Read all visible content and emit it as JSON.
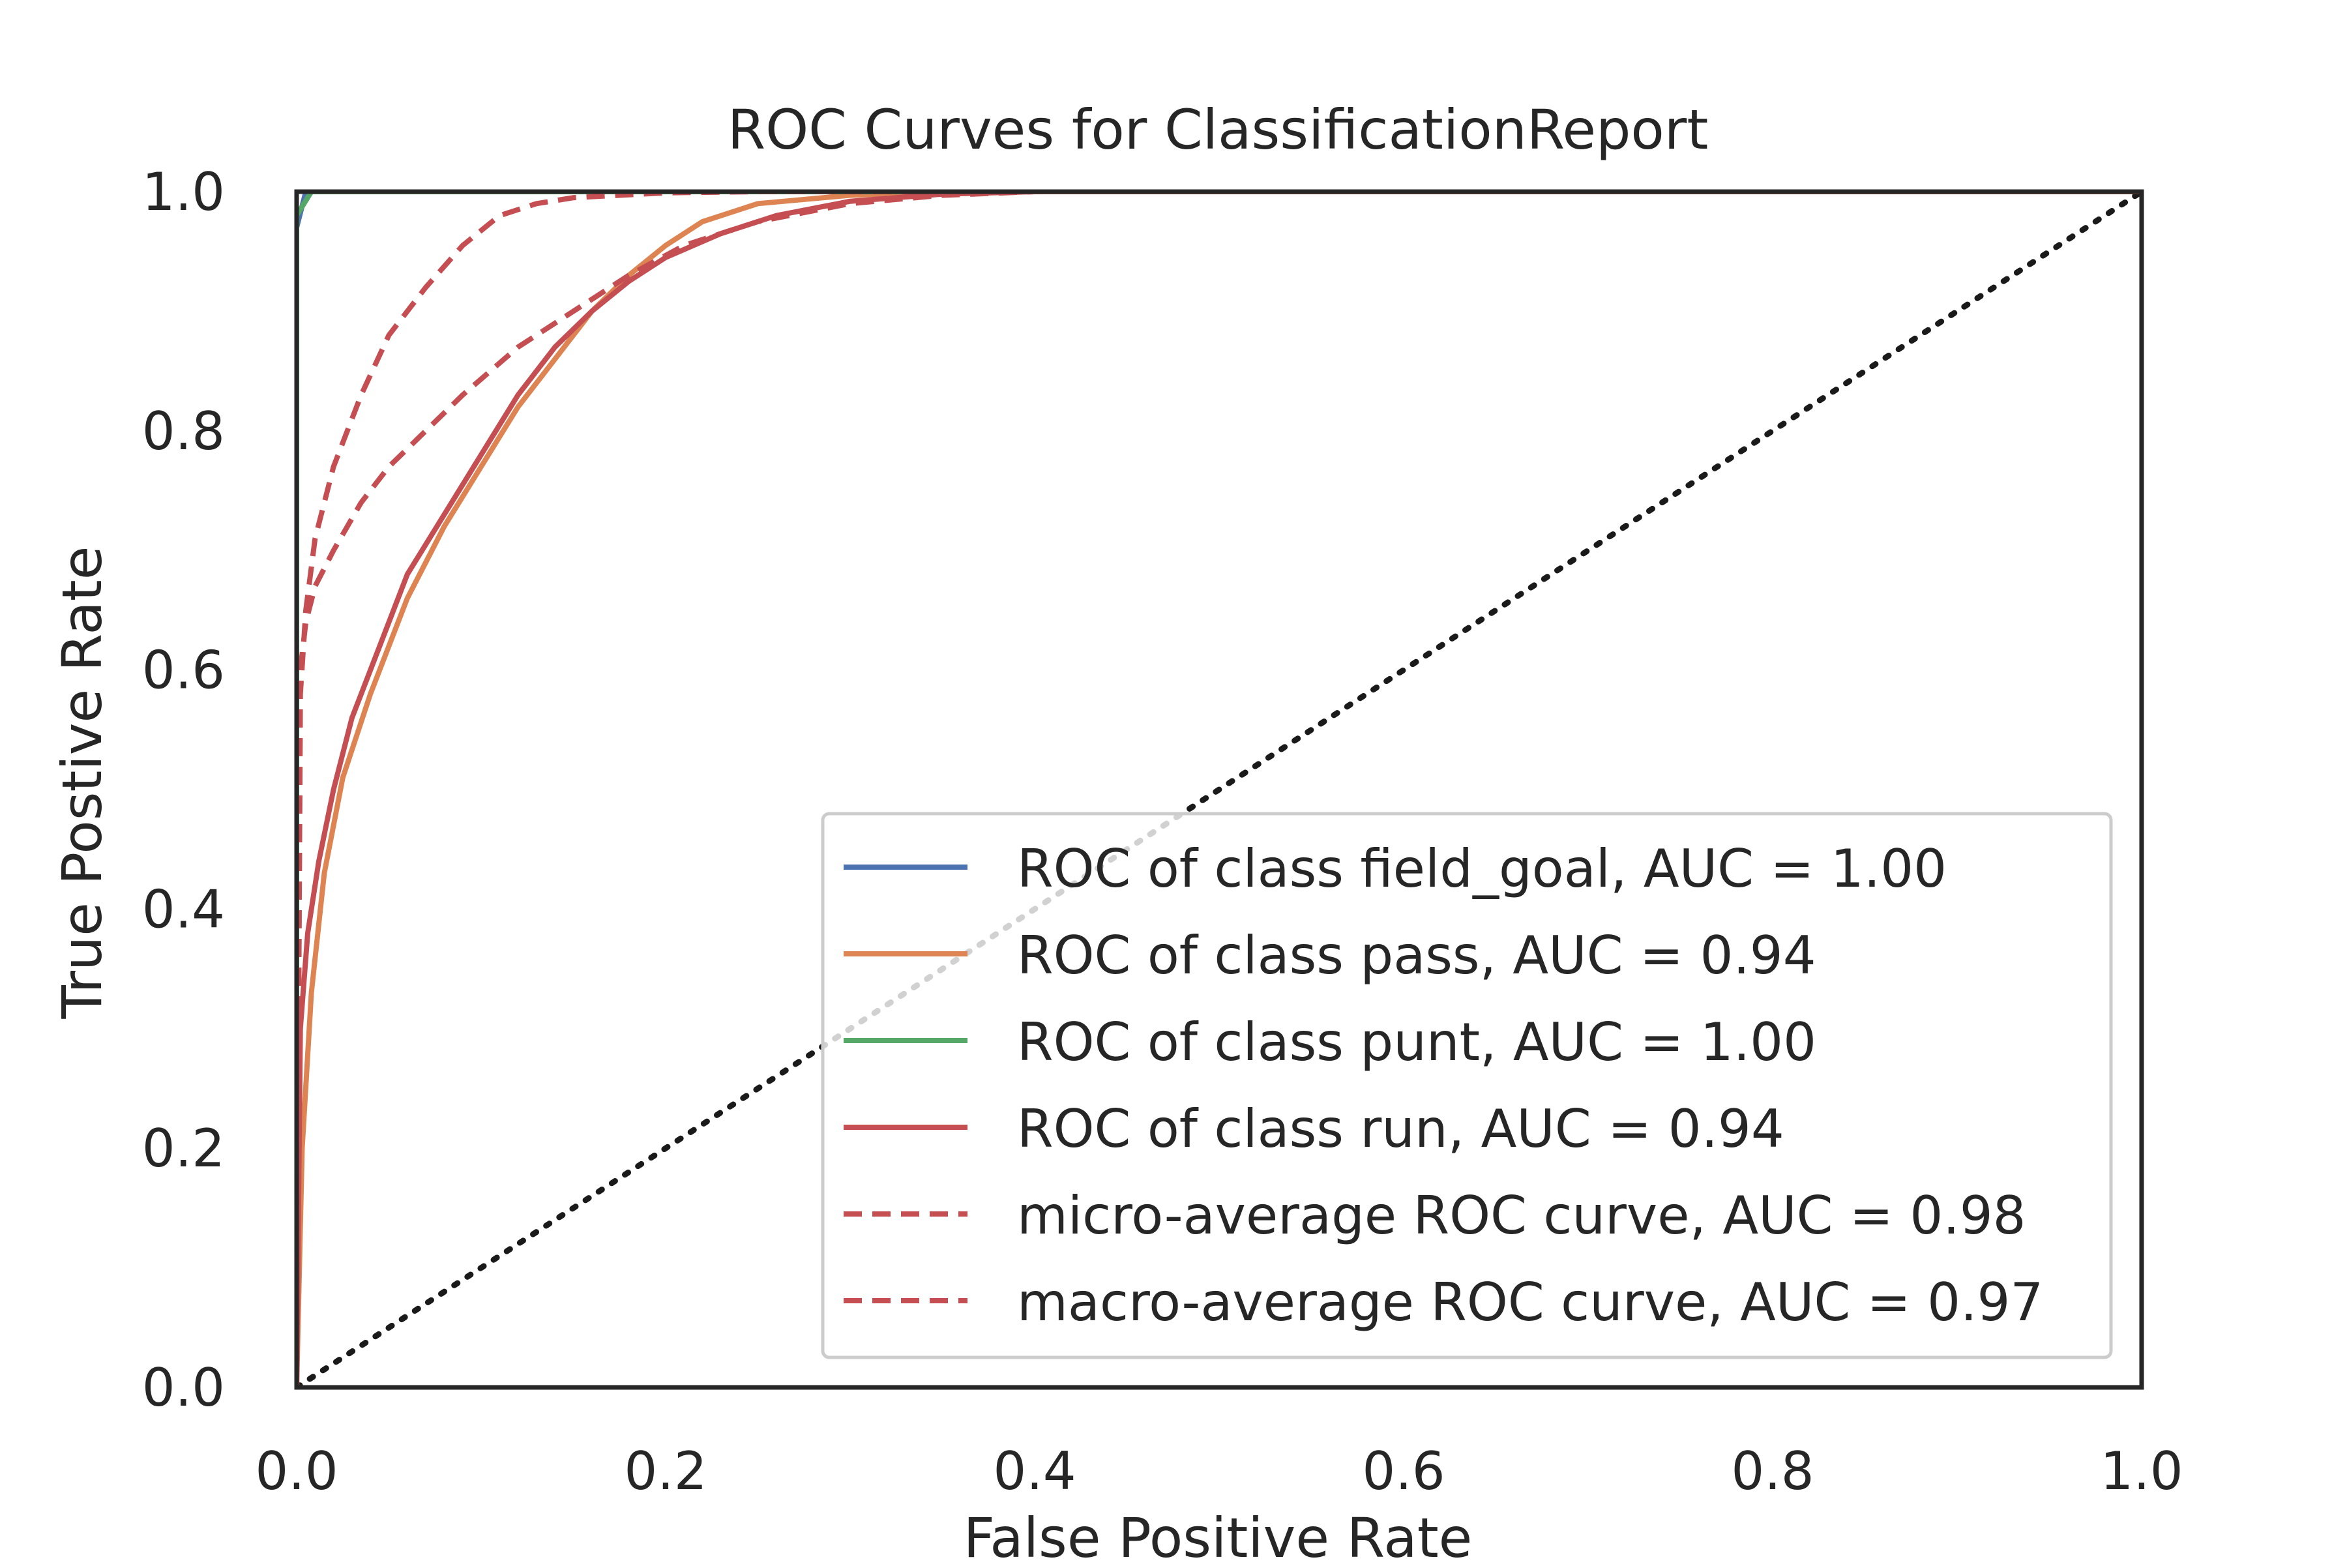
{
  "chart_data": {
    "type": "line",
    "title": "ROC Curves for ClassificationReport",
    "xlabel": "False Positive Rate",
    "ylabel": "True Postive Rate",
    "xlim": [
      0.0,
      1.0
    ],
    "ylim": [
      0.0,
      1.0
    ],
    "xticks": [
      "0.0",
      "0.2",
      "0.4",
      "0.6",
      "0.8",
      "1.0"
    ],
    "yticks": [
      "0.0",
      "0.2",
      "0.4",
      "0.6",
      "0.8",
      "1.0"
    ],
    "grid": false,
    "legend_position": "lower-right",
    "series": [
      {
        "name": "ROC of class field_goal, AUC = 1.00",
        "color": "#4c72b0",
        "dash": "solid",
        "x": [
          0.0,
          0.0,
          0.005,
          1.0
        ],
        "y": [
          0.0,
          0.97,
          1.0,
          1.0
        ]
      },
      {
        "name": "ROC of class pass, AUC = 0.94",
        "color": "#dd8452",
        "dash": "solid",
        "x": [
          0.0,
          0.003,
          0.008,
          0.015,
          0.025,
          0.04,
          0.06,
          0.08,
          0.1,
          0.12,
          0.14,
          0.16,
          0.18,
          0.2,
          0.22,
          0.25,
          0.3,
          0.35,
          0.4,
          0.5,
          0.6,
          0.8,
          1.0
        ],
        "y": [
          0.0,
          0.2,
          0.33,
          0.43,
          0.51,
          0.58,
          0.66,
          0.72,
          0.77,
          0.82,
          0.86,
          0.9,
          0.93,
          0.955,
          0.975,
          0.99,
          0.997,
          1.0,
          1.0,
          1.0,
          1.0,
          1.0,
          1.0
        ]
      },
      {
        "name": "ROC of class punt, AUC = 1.00",
        "color": "#55a868",
        "dash": "solid",
        "x": [
          0.0,
          0.0,
          0.008,
          1.0
        ],
        "y": [
          0.0,
          0.98,
          1.0,
          1.0
        ]
      },
      {
        "name": "ROC of class run, AUC = 0.94",
        "color": "#c44e52",
        "dash": "solid",
        "x": [
          0.0,
          0.002,
          0.006,
          0.012,
          0.02,
          0.03,
          0.045,
          0.06,
          0.08,
          0.1,
          0.12,
          0.14,
          0.16,
          0.18,
          0.2,
          0.23,
          0.26,
          0.3,
          0.35,
          0.4,
          0.5,
          0.7,
          1.0
        ],
        "y": [
          0.0,
          0.3,
          0.38,
          0.44,
          0.5,
          0.56,
          0.62,
          0.68,
          0.73,
          0.78,
          0.83,
          0.87,
          0.9,
          0.925,
          0.945,
          0.965,
          0.98,
          0.992,
          0.998,
          1.0,
          1.0,
          1.0,
          1.0
        ]
      },
      {
        "name": "micro-average ROC curve, AUC = 0.98",
        "color": "#c44e52",
        "dash": "dashed",
        "x": [
          0.0,
          0.002,
          0.005,
          0.01,
          0.02,
          0.035,
          0.05,
          0.07,
          0.09,
          0.11,
          0.13,
          0.15,
          0.2,
          0.25,
          0.3,
          0.4,
          0.6,
          1.0
        ],
        "y": [
          0.0,
          0.58,
          0.65,
          0.71,
          0.77,
          0.83,
          0.88,
          0.92,
          0.955,
          0.98,
          0.99,
          0.995,
          0.999,
          1.0,
          1.0,
          1.0,
          1.0,
          1.0
        ]
      },
      {
        "name": "macro-average ROC curve, AUC = 0.97",
        "color": "#c44e52",
        "dash": "dashed",
        "x": [
          0.0,
          0.002,
          0.005,
          0.01,
          0.02,
          0.035,
          0.05,
          0.07,
          0.09,
          0.12,
          0.15,
          0.18,
          0.21,
          0.25,
          0.3,
          0.35,
          0.4,
          0.5,
          0.7,
          1.0
        ],
        "y": [
          0.0,
          0.6,
          0.64,
          0.67,
          0.7,
          0.74,
          0.77,
          0.8,
          0.83,
          0.87,
          0.9,
          0.93,
          0.955,
          0.975,
          0.99,
          0.997,
          1.0,
          1.0,
          1.0,
          1.0
        ]
      },
      {
        "name": "",
        "color": "#1a1a1a",
        "dash": "dotted",
        "x": [
          0.0,
          1.0
        ],
        "y": [
          0.0,
          1.0
        ]
      }
    ]
  }
}
